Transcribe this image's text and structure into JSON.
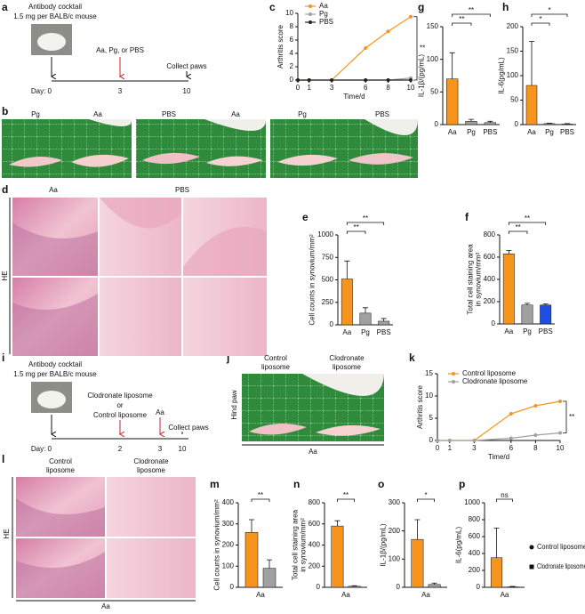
{
  "panel_labels": [
    "a",
    "b",
    "c",
    "d",
    "e",
    "f",
    "g",
    "h",
    "i",
    "j",
    "k",
    "l",
    "m",
    "n",
    "o",
    "p"
  ],
  "timeline_a": {
    "title": "Antibody cocktail",
    "dose": "1.5 mg per BALB/c mouse",
    "treatment": "Aa, Pg, or PBS",
    "end": "Collect paws",
    "days": [
      "Day: 0",
      "3",
      "10"
    ]
  },
  "photos_b": {
    "labels": [
      "Pg",
      "Aa",
      "PBS",
      "Aa",
      "Pg",
      "PBS"
    ]
  },
  "histology_d": {
    "labels": [
      "Aa",
      "PBS"
    ],
    "stain": "HE"
  },
  "timeline_i": {
    "title": "Antibody cocktail",
    "dose": "1.5 mg per BALB/c mouse",
    "treatment": [
      "Clodronate liposome",
      "or",
      "Control liposome"
    ],
    "challenge": "Aa",
    "end": "Collect paws",
    "days": [
      "Day: 0",
      "2",
      "3",
      "10"
    ]
  },
  "photos_j": {
    "labels": [
      [
        "Control",
        "liposome"
      ],
      [
        "Clodronate",
        "liposome"
      ]
    ],
    "side": "Hind paw",
    "group": "Aa"
  },
  "histology_l": {
    "labels": [
      [
        "Control",
        "liposome"
      ],
      [
        "Clodronate",
        "liposome"
      ]
    ],
    "stain": "HE",
    "group": "Aa"
  },
  "chart_data": [
    {
      "type": "line",
      "xlabel": "Time/d",
      "ylabel": "Arthritis score",
      "x": [
        0,
        1,
        3,
        6,
        8,
        10
      ],
      "xlim": [
        0,
        10
      ],
      "xticks": [
        0,
        1,
        3,
        6,
        8,
        10
      ],
      "ylim": [
        0,
        10
      ],
      "yticks": [
        0,
        2,
        4,
        6,
        8,
        10
      ],
      "series": [
        {
          "name": "Aa",
          "color": "#f7941d",
          "values": [
            0,
            0,
            0,
            4.8,
            7.3,
            9.5
          ]
        },
        {
          "name": "Pg",
          "color": "#a0a0a0",
          "values": [
            0,
            0,
            0,
            0,
            0,
            0.3
          ]
        },
        {
          "name": "PBS",
          "color": "#222222",
          "values": [
            0,
            0,
            0,
            0,
            0,
            0
          ]
        }
      ],
      "annotations": [
        "**"
      ],
      "legend": "top-left"
    },
    {
      "type": "bar",
      "ylabel": "IL-1β/(pg/mL)",
      "categories": [
        "Aa",
        "Pg",
        "PBS"
      ],
      "values": [
        70,
        5,
        3
      ],
      "errors": [
        40,
        3,
        2
      ],
      "colors": [
        "#f7941d",
        "#a0a0a0",
        "#a0a0a0"
      ],
      "ylim": [
        0,
        150
      ],
      "yticks": [
        0,
        50,
        100,
        150
      ],
      "annotations": [
        "**",
        "**"
      ]
    },
    {
      "type": "bar",
      "ylabel": "IL-6(pg/mL)",
      "categories": [
        "Aa",
        "Pg",
        "PBS"
      ],
      "values": [
        80,
        2,
        1
      ],
      "errors": [
        90,
        1,
        1
      ],
      "colors": [
        "#f7941d",
        "#a0a0a0",
        "#a0a0a0"
      ],
      "ylim": [
        0,
        200
      ],
      "yticks": [
        0,
        50,
        100,
        150,
        200
      ],
      "annotations": [
        "*",
        "*"
      ]
    },
    {
      "type": "bar",
      "ylabel": "Cell counts in synovium/mm²",
      "categories": [
        "Aa",
        "Pg",
        "PBS"
      ],
      "values": [
        510,
        130,
        40
      ],
      "errors": [
        200,
        60,
        30
      ],
      "colors": [
        "#f7941d",
        "#a0a0a0",
        "#a0a0a0"
      ],
      "ylim": [
        0,
        1000
      ],
      "yticks": [
        0,
        250,
        500,
        750,
        1000
      ],
      "annotations": [
        "**",
        "**"
      ]
    },
    {
      "type": "bar",
      "ylabel": [
        "Total cell staining area",
        "in synovium/mm²"
      ],
      "categories": [
        "Aa",
        "Pg",
        "PBS"
      ],
      "values": [
        630,
        170,
        170
      ],
      "errors": [
        30,
        15,
        10
      ],
      "colors": [
        "#f7941d",
        "#a0a0a0",
        "#1f4fe0"
      ],
      "ylim": [
        0,
        800
      ],
      "yticks": [
        0,
        200,
        400,
        600,
        800
      ],
      "annotations": [
        "**",
        "**"
      ]
    },
    {
      "type": "line",
      "xlabel": "Time/d",
      "ylabel": "Arthritis score",
      "x": [
        0,
        1,
        3,
        6,
        8,
        10
      ],
      "xlim": [
        0,
        10
      ],
      "xticks": [
        0,
        1,
        3,
        6,
        8,
        10
      ],
      "ylim": [
        0,
        15
      ],
      "yticks": [
        0,
        5,
        10,
        15
      ],
      "series": [
        {
          "name": "Control liposome",
          "color": "#f7941d",
          "values": [
            0,
            0,
            0,
            6,
            7.8,
            8.8
          ]
        },
        {
          "name": "Clodronate liposome",
          "color": "#a0a0a0",
          "values": [
            0,
            0,
            0,
            0.5,
            1.2,
            1.7
          ]
        }
      ],
      "annotations": [
        "**"
      ],
      "legend": "top-left"
    },
    {
      "type": "grouped_bar",
      "ylabel": "Cell counts in synovium/mm²",
      "categories": [
        "Aa"
      ],
      "series": [
        {
          "color": "#f7941d",
          "values": [
            260
          ],
          "errors": [
            60
          ]
        },
        {
          "color": "#a0a0a0",
          "values": [
            90
          ],
          "errors": [
            40
          ]
        }
      ],
      "ylim": [
        0,
        400
      ],
      "yticks": [
        0,
        100,
        200,
        300,
        400
      ],
      "annotations": [
        "**"
      ]
    },
    {
      "type": "grouped_bar",
      "ylabel": [
        "Total cell staining area",
        "in synovium/mm²"
      ],
      "categories": [
        "Aa"
      ],
      "series": [
        {
          "color": "#f7941d",
          "values": [
            580
          ],
          "errors": [
            50
          ]
        },
        {
          "color": "#a0a0a0",
          "values": [
            10
          ],
          "errors": [
            5
          ]
        }
      ],
      "ylim": [
        0,
        800
      ],
      "yticks": [
        0,
        200,
        400,
        600,
        800
      ],
      "annotations": [
        "**"
      ]
    },
    {
      "type": "grouped_bar",
      "ylabel": "IL-1β/(pg/mL)",
      "categories": [
        "Aa"
      ],
      "series": [
        {
          "color": "#f7941d",
          "values": [
            170
          ],
          "errors": [
            70
          ]
        },
        {
          "color": "#a0a0a0",
          "values": [
            10
          ],
          "errors": [
            5
          ]
        }
      ],
      "ylim": [
        0,
        300
      ],
      "yticks": [
        0,
        100,
        200,
        300
      ],
      "annotations": [
        "*"
      ]
    },
    {
      "type": "grouped_bar",
      "ylabel": "IL-6(pg/mL)",
      "categories": [
        "Aa"
      ],
      "series": [
        {
          "name": "Control liposome",
          "color": "#f7941d",
          "values": [
            350
          ],
          "errors": [
            350
          ]
        },
        {
          "name": "Clodronate liposome",
          "color": "#a0a0a0",
          "values": [
            5
          ],
          "errors": [
            5
          ]
        }
      ],
      "ylim": [
        0,
        1000
      ],
      "yticks": [
        0,
        200,
        400,
        600,
        800,
        1000
      ],
      "annotations": [
        "ns"
      ],
      "legend": "right"
    }
  ]
}
